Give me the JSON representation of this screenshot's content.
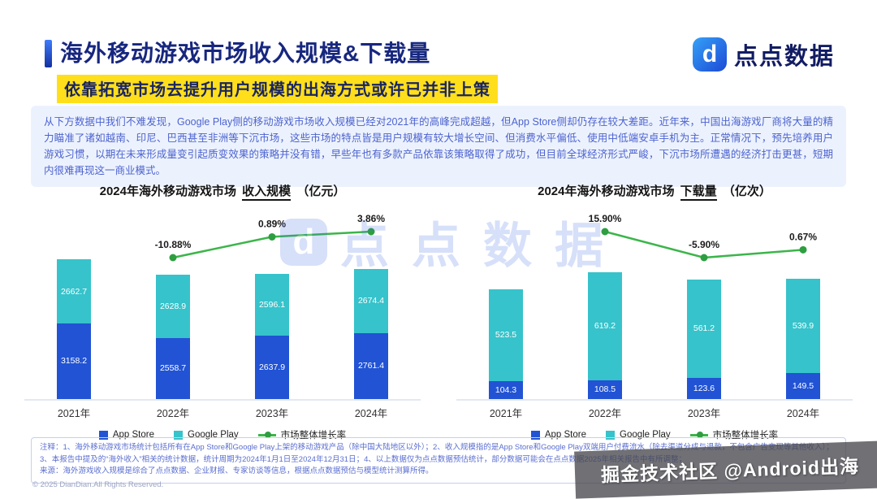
{
  "header": {
    "title": "海外移动游戏市场收入规模&下载量",
    "subtitle": "依靠拓宽市场去提升用户规模的出海方式或许已并非上策",
    "logo_text": "点点数据",
    "logo_letter": "d"
  },
  "intro": "从下方数据中我们不难发现，Google Play侧的移动游戏市场收入规模已经对2021年的高峰完成超越，但App Store侧却仍存在较大差距。近年来，中国出海游戏厂商将大量的精力瞄准了诸如越南、印尼、巴西甚至非洲等下沉市场，这些市场的特点皆是用户规模有较大增长空间、但消费水平偏低、使用中低端安卓手机为主。正常情况下，预先培养用户游戏习惯，以期在未来形成量变引起质变效果的策略并没有错，早些年也有多款产品依靠该策略取得了成功，但目前全球经济形式严峻，下沉市场所遭遇的经济打击更甚，短期内很难再现这一商业模式。",
  "colors": {
    "app_store": "#2153d4",
    "google_play": "#36c3cb",
    "growth_line": "#3cb54a",
    "growth_marker": "#2e9e41",
    "accent_blue": "#17277f",
    "highlight_yellow": "#ffdf1b"
  },
  "chart_data": [
    {
      "type": "bar",
      "stacked": true,
      "title_prefix": "2024年海外移动游戏市场",
      "title_highlight": "收入规模",
      "title_unit": "（亿元）",
      "categories": [
        "2021年",
        "2022年",
        "2023年",
        "2024年"
      ],
      "series": [
        {
          "name": "App Store",
          "color": "#2153d4",
          "values": [
            3158.2,
            2558.7,
            2637.9,
            2761.4
          ]
        },
        {
          "name": "Google Play",
          "color": "#36c3cb",
          "values": [
            2662.7,
            2628.9,
            2596.1,
            2674.4
          ]
        }
      ],
      "growth_line": {
        "name": "市场整体增长率",
        "color": "#3cb54a",
        "values": [
          null,
          -10.88,
          0.89,
          3.86
        ],
        "labels": [
          "",
          "-10.88%",
          "0.89%",
          "3.86%"
        ]
      },
      "ylim": [
        0,
        8000
      ],
      "legend_position": "bottom"
    },
    {
      "type": "bar",
      "stacked": true,
      "title_prefix": "2024年海外移动游戏市场",
      "title_highlight": "下载量",
      "title_unit": "（亿次）",
      "categories": [
        "2021年",
        "2022年",
        "2023年",
        "2024年"
      ],
      "series": [
        {
          "name": "App Store",
          "color": "#2153d4",
          "values": [
            104.3,
            108.5,
            123.6,
            149.5
          ]
        },
        {
          "name": "Google Play",
          "color": "#36c3cb",
          "values": [
            523.5,
            619.2,
            561.2,
            539.9
          ]
        }
      ],
      "growth_line": {
        "name": "市场整体增长率",
        "color": "#3cb54a",
        "values": [
          null,
          15.9,
          -5.9,
          0.67
        ],
        "labels": [
          "",
          "15.90%",
          "-5.90%",
          "0.67%"
        ]
      },
      "ylim": [
        0,
        1100
      ],
      "legend_position": "bottom"
    }
  ],
  "notes": {
    "line1": "注释：1、海外移动游戏市场统计包括所有在App Store和Google Play上架的移动游戏产品（除中国大陆地区以外）；2、收入规模指的是App Store和Google Play双端用户付费流水（除去渠道分成与退款，不包含广告变现等其他收入）；3、本报告中提及的“海外收入”相关的统计数据，统计周期为2024年1月1日至2024年12月31日；4、以上数据仅为点点数据预估统计，部分数据可能会在点点数据2025年相关报告中有所调整；",
    "source": "来源：海外游戏收入规模是综合了点点数据、企业财报、专家访谈等信息，根据点点数据预估与模型统计测算所得。"
  },
  "footer": "© 2025 DianDian.All Rights Reserved.",
  "watermark": {
    "center_text": "点点数据",
    "center_letter": "d",
    "badge_text": "掘金技术社区 @Android出海"
  }
}
